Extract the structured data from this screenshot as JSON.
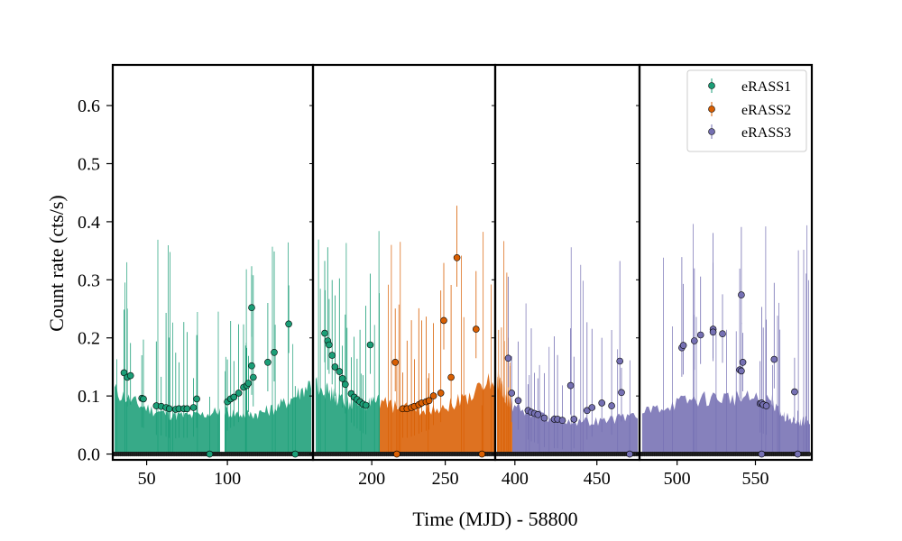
{
  "chart_data": {
    "type": "scatter",
    "xlabel": "Time (MJD) - 58800",
    "ylabel": "Count rate (cts/s)",
    "ylim": [
      -0.01,
      0.67
    ],
    "yticks": [
      0.0,
      0.1,
      0.2,
      0.3,
      0.4,
      0.5,
      0.6
    ],
    "ytick_labels": [
      "0.0",
      "0.1",
      "0.2",
      "0.3",
      "0.4",
      "0.5",
      "0.6"
    ],
    "legend_position": "top-right",
    "series_colors": {
      "eRASS1": "#1b9e77",
      "eRASS2": "#d95f02",
      "eRASS3": "#7570b3"
    },
    "panels": [
      {
        "xlim": [
          29,
          153
        ],
        "xticks": [
          50,
          100
        ],
        "xtick_labels": [
          "50",
          "100"
        ],
        "points": [
          {
            "s": "eRASS1",
            "x": 36,
            "y": 0.14
          },
          {
            "s": "eRASS1",
            "x": 38,
            "y": 0.132
          },
          {
            "s": "eRASS1",
            "x": 40,
            "y": 0.135
          },
          {
            "s": "eRASS1",
            "x": 47,
            "y": 0.096
          },
          {
            "s": "eRASS1",
            "x": 48,
            "y": 0.095
          },
          {
            "s": "eRASS1",
            "x": 56,
            "y": 0.083
          },
          {
            "s": "eRASS1",
            "x": 59,
            "y": 0.082
          },
          {
            "s": "eRASS1",
            "x": 62,
            "y": 0.08
          },
          {
            "s": "eRASS1",
            "x": 64,
            "y": 0.078
          },
          {
            "s": "eRASS1",
            "x": 68,
            "y": 0.077
          },
          {
            "s": "eRASS1",
            "x": 70,
            "y": 0.078
          },
          {
            "s": "eRASS1",
            "x": 73,
            "y": 0.078
          },
          {
            "s": "eRASS1",
            "x": 75,
            "y": 0.078
          },
          {
            "s": "eRASS1",
            "x": 79,
            "y": 0.08
          },
          {
            "s": "eRASS1",
            "x": 81,
            "y": 0.095
          },
          {
            "s": "eRASS1",
            "x": 100,
            "y": 0.09
          },
          {
            "s": "eRASS1",
            "x": 102,
            "y": 0.095
          },
          {
            "s": "eRASS1",
            "x": 104,
            "y": 0.098
          },
          {
            "s": "eRASS1",
            "x": 107,
            "y": 0.105
          },
          {
            "s": "eRASS1",
            "x": 110,
            "y": 0.115
          },
          {
            "s": "eRASS1",
            "x": 112,
            "y": 0.118
          },
          {
            "s": "eRASS1",
            "x": 113,
            "y": 0.122
          },
          {
            "s": "eRASS1",
            "x": 115,
            "y": 0.152
          },
          {
            "s": "eRASS1",
            "x": 116,
            "y": 0.132
          },
          {
            "s": "eRASS1",
            "x": 115,
            "y": 0.252
          },
          {
            "s": "eRASS1",
            "x": 125,
            "y": 0.158
          },
          {
            "s": "eRASS1",
            "x": 129,
            "y": 0.175
          },
          {
            "s": "eRASS1",
            "x": 138,
            "y": 0.224
          },
          {
            "s": "eRASS1",
            "x": 89,
            "y": 0.0
          },
          {
            "s": "eRASS1",
            "x": 142,
            "y": 0.0
          }
        ]
      },
      {
        "xlim": [
          160,
          284
        ],
        "xticks": [
          200,
          250
        ],
        "xtick_labels": [
          "200",
          "250"
        ],
        "points": [
          {
            "s": "eRASS1",
            "x": 168,
            "y": 0.208
          },
          {
            "s": "eRASS1",
            "x": 170,
            "y": 0.195
          },
          {
            "s": "eRASS1",
            "x": 171,
            "y": 0.188
          },
          {
            "s": "eRASS1",
            "x": 173,
            "y": 0.17
          },
          {
            "s": "eRASS1",
            "x": 175,
            "y": 0.15
          },
          {
            "s": "eRASS1",
            "x": 178,
            "y": 0.142
          },
          {
            "s": "eRASS1",
            "x": 180,
            "y": 0.13
          },
          {
            "s": "eRASS1",
            "x": 182,
            "y": 0.12
          },
          {
            "s": "eRASS1",
            "x": 186,
            "y": 0.104
          },
          {
            "s": "eRASS1",
            "x": 188,
            "y": 0.098
          },
          {
            "s": "eRASS1",
            "x": 190,
            "y": 0.094
          },
          {
            "s": "eRASS1",
            "x": 192,
            "y": 0.09
          },
          {
            "s": "eRASS1",
            "x": 194,
            "y": 0.086
          },
          {
            "s": "eRASS1",
            "x": 196,
            "y": 0.084
          },
          {
            "s": "eRASS1",
            "x": 199,
            "y": 0.188
          },
          {
            "s": "eRASS2",
            "x": 216,
            "y": 0.158
          },
          {
            "s": "eRASS2",
            "x": 221,
            "y": 0.078
          },
          {
            "s": "eRASS2",
            "x": 224,
            "y": 0.078
          },
          {
            "s": "eRASS2",
            "x": 227,
            "y": 0.08
          },
          {
            "s": "eRASS2",
            "x": 229,
            "y": 0.082
          },
          {
            "s": "eRASS2",
            "x": 232,
            "y": 0.085
          },
          {
            "s": "eRASS2",
            "x": 234,
            "y": 0.088
          },
          {
            "s": "eRASS2",
            "x": 237,
            "y": 0.09
          },
          {
            "s": "eRASS2",
            "x": 239,
            "y": 0.092
          },
          {
            "s": "eRASS2",
            "x": 242,
            "y": 0.1
          },
          {
            "s": "eRASS2",
            "x": 247,
            "y": 0.105
          },
          {
            "s": "eRASS2",
            "x": 249,
            "y": 0.23
          },
          {
            "s": "eRASS2",
            "x": 254,
            "y": 0.132
          },
          {
            "s": "eRASS2",
            "x": 258,
            "y": 0.338
          },
          {
            "s": "eRASS2",
            "x": 271,
            "y": 0.215
          },
          {
            "s": "eRASS2",
            "x": 217,
            "y": 0.0
          },
          {
            "s": "eRASS2",
            "x": 275,
            "y": 0.0
          }
        ]
      },
      {
        "xlim": [
          388,
          476
        ],
        "xticks": [
          400,
          450
        ],
        "xtick_labels": [
          "400",
          "450"
        ],
        "points": [
          {
            "s": "eRASS3",
            "x": 396,
            "y": 0.165
          },
          {
            "s": "eRASS3",
            "x": 398,
            "y": 0.105
          },
          {
            "s": "eRASS3",
            "x": 402,
            "y": 0.092
          },
          {
            "s": "eRASS3",
            "x": 408,
            "y": 0.075
          },
          {
            "s": "eRASS3",
            "x": 410,
            "y": 0.072
          },
          {
            "s": "eRASS3",
            "x": 412,
            "y": 0.07
          },
          {
            "s": "eRASS3",
            "x": 414,
            "y": 0.068
          },
          {
            "s": "eRASS3",
            "x": 418,
            "y": 0.062
          },
          {
            "s": "eRASS3",
            "x": 424,
            "y": 0.06
          },
          {
            "s": "eRASS3",
            "x": 426,
            "y": 0.06
          },
          {
            "s": "eRASS3",
            "x": 429,
            "y": 0.058
          },
          {
            "s": "eRASS3",
            "x": 434,
            "y": 0.118
          },
          {
            "s": "eRASS3",
            "x": 436,
            "y": 0.06
          },
          {
            "s": "eRASS3",
            "x": 444,
            "y": 0.075
          },
          {
            "s": "eRASS3",
            "x": 447,
            "y": 0.08
          },
          {
            "s": "eRASS3",
            "x": 453,
            "y": 0.088
          },
          {
            "s": "eRASS3",
            "x": 459,
            "y": 0.083
          },
          {
            "s": "eRASS3",
            "x": 464,
            "y": 0.16
          },
          {
            "s": "eRASS3",
            "x": 465,
            "y": 0.106
          },
          {
            "s": "eRASS3",
            "x": 470,
            "y": 0.0
          }
        ]
      },
      {
        "xlim": [
          476,
          586
        ],
        "xticks": [
          500,
          550
        ],
        "xtick_labels": [
          "500",
          "550"
        ],
        "points": [
          {
            "s": "eRASS3",
            "x": 503,
            "y": 0.183
          },
          {
            "s": "eRASS3",
            "x": 504,
            "y": 0.187
          },
          {
            "s": "eRASS3",
            "x": 511,
            "y": 0.195
          },
          {
            "s": "eRASS3",
            "x": 515,
            "y": 0.205
          },
          {
            "s": "eRASS3",
            "x": 523,
            "y": 0.215
          },
          {
            "s": "eRASS3",
            "x": 523,
            "y": 0.21
          },
          {
            "s": "eRASS3",
            "x": 529,
            "y": 0.207
          },
          {
            "s": "eRASS3",
            "x": 540,
            "y": 0.145
          },
          {
            "s": "eRASS3",
            "x": 541,
            "y": 0.143
          },
          {
            "s": "eRASS3",
            "x": 541,
            "y": 0.274
          },
          {
            "s": "eRASS3",
            "x": 542,
            "y": 0.158
          },
          {
            "s": "eRASS3",
            "x": 553,
            "y": 0.087
          },
          {
            "s": "eRASS3",
            "x": 554,
            "y": 0.088
          },
          {
            "s": "eRASS3",
            "x": 555,
            "y": 0.085
          },
          {
            "s": "eRASS3",
            "x": 557,
            "y": 0.083
          },
          {
            "s": "eRASS3",
            "x": 562,
            "y": 0.163
          },
          {
            "s": "eRASS3",
            "x": 575,
            "y": 0.107
          },
          {
            "s": "eRASS3",
            "x": 554,
            "y": 0.0
          },
          {
            "s": "eRASS3",
            "x": 577,
            "y": 0.0
          }
        ]
      }
    ],
    "legend": [
      {
        "label": "eRASS1",
        "series": "eRASS1"
      },
      {
        "label": "eRASS2",
        "series": "eRASS2"
      },
      {
        "label": "eRASS3",
        "series": "eRASS3"
      }
    ]
  }
}
